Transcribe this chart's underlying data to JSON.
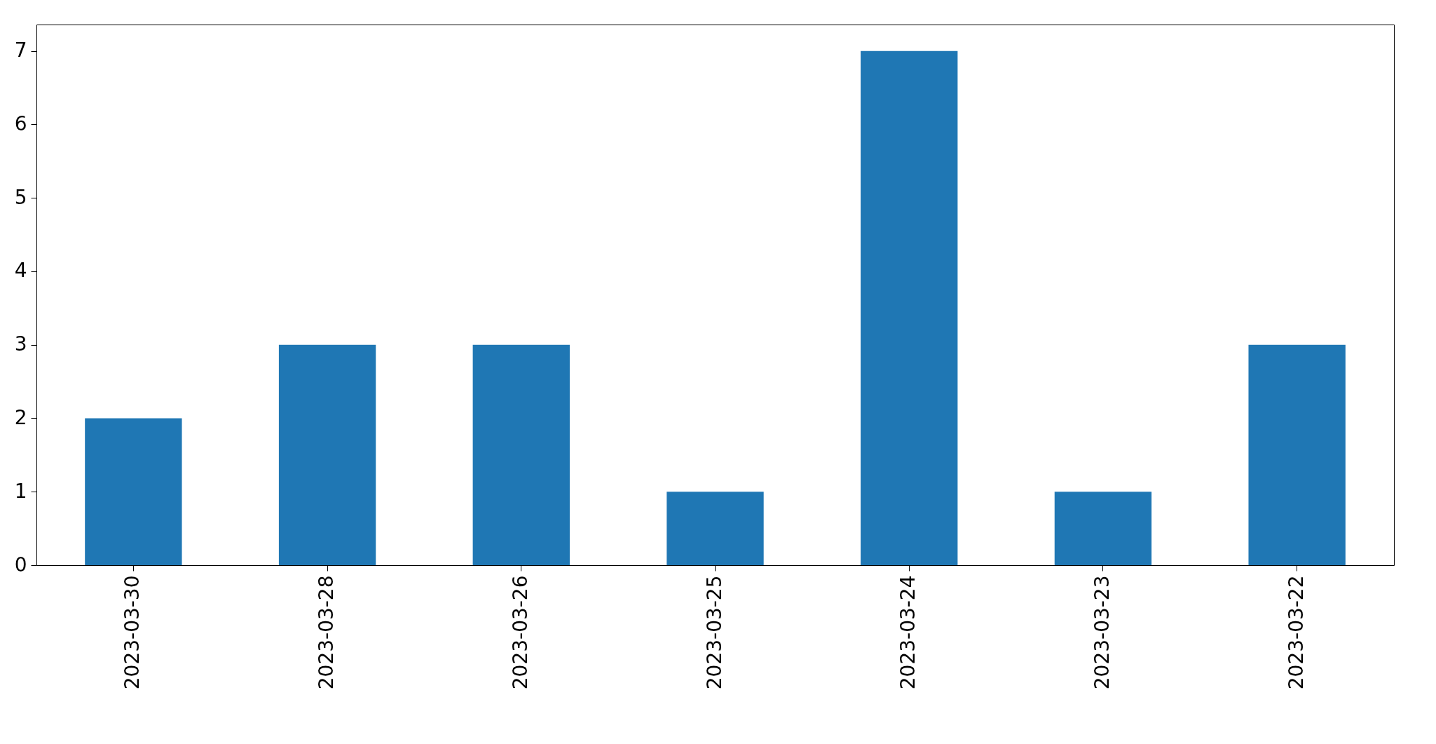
{
  "chart_data": {
    "type": "bar",
    "categories": [
      "2023-03-30",
      "2023-03-28",
      "2023-03-26",
      "2023-03-25",
      "2023-03-24",
      "2023-03-23",
      "2023-03-22"
    ],
    "values": [
      2,
      3,
      3,
      1,
      7,
      1,
      3
    ],
    "color": "#1f77b4",
    "ylim": [
      0,
      7.36
    ],
    "yticks": [
      0,
      1,
      2,
      3,
      4,
      5,
      6,
      7
    ],
    "grid": false
  }
}
